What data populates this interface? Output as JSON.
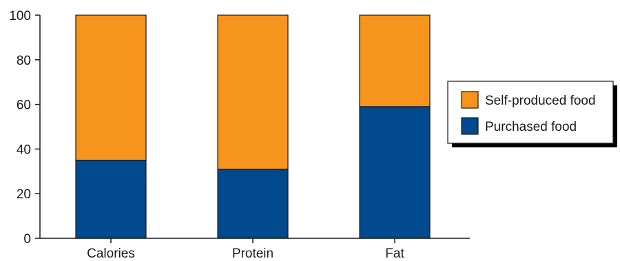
{
  "chart_data": {
    "type": "bar",
    "stacked": true,
    "categories": [
      "Calories",
      "Protein",
      "Fat"
    ],
    "series": [
      {
        "name": "Purchased food",
        "color": "#004a8d",
        "values": [
          35,
          31,
          59
        ]
      },
      {
        "name": "Self-produced food",
        "color": "#f7941d",
        "values": [
          65,
          69,
          41
        ]
      }
    ],
    "title": "",
    "xlabel": "",
    "ylabel": "",
    "ylim": [
      0,
      100
    ],
    "yticks": [
      0,
      20,
      40,
      60,
      80,
      100
    ],
    "grid": false,
    "legend": {
      "placement": "right",
      "order": [
        "Self-produced food",
        "Purchased food"
      ]
    }
  }
}
